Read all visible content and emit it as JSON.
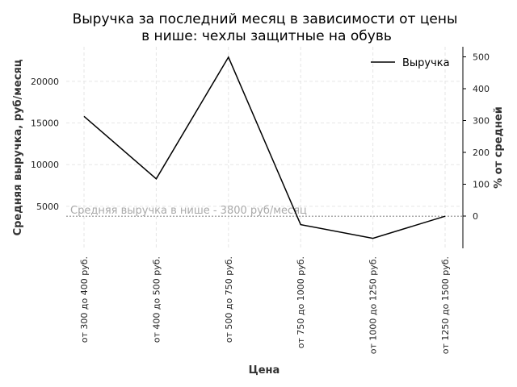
{
  "chart_data": {
    "type": "line",
    "title_lines": [
      "Выручка за последний месяц в зависимости от цены",
      "в нише: чехлы защитные на обувь"
    ],
    "xlabel": "Цена",
    "ylabel": "Средняя выручка, руб/месяц",
    "y2label": "% от средней",
    "categories": [
      "от 300 до 400 руб.",
      "от 400 до 500 руб.",
      "от 500 до 750 руб.",
      "от 750 до 1000 руб.",
      "от 1000 до 1250 руб.",
      "от 1250 до 1500 руб."
    ],
    "series": [
      {
        "name": "Выручка",
        "values": [
          15800,
          8300,
          22900,
          2800,
          1150,
          3800
        ]
      }
    ],
    "ylim": [
      0,
      24000
    ],
    "yticks": [
      5000,
      10000,
      15000,
      20000
    ],
    "y2lim": [
      -100,
      500
    ],
    "y2ticks": [
      0,
      100,
      200,
      300,
      400,
      500
    ],
    "average": {
      "value": 3800,
      "label": "Средняя выручка в нише - 3800 руб/месяц"
    },
    "grid": true,
    "legend_position": "top-right",
    "colors": {
      "line": "#000000",
      "grid": "#e5e5e5",
      "average_line": "#aaaaaa"
    }
  }
}
